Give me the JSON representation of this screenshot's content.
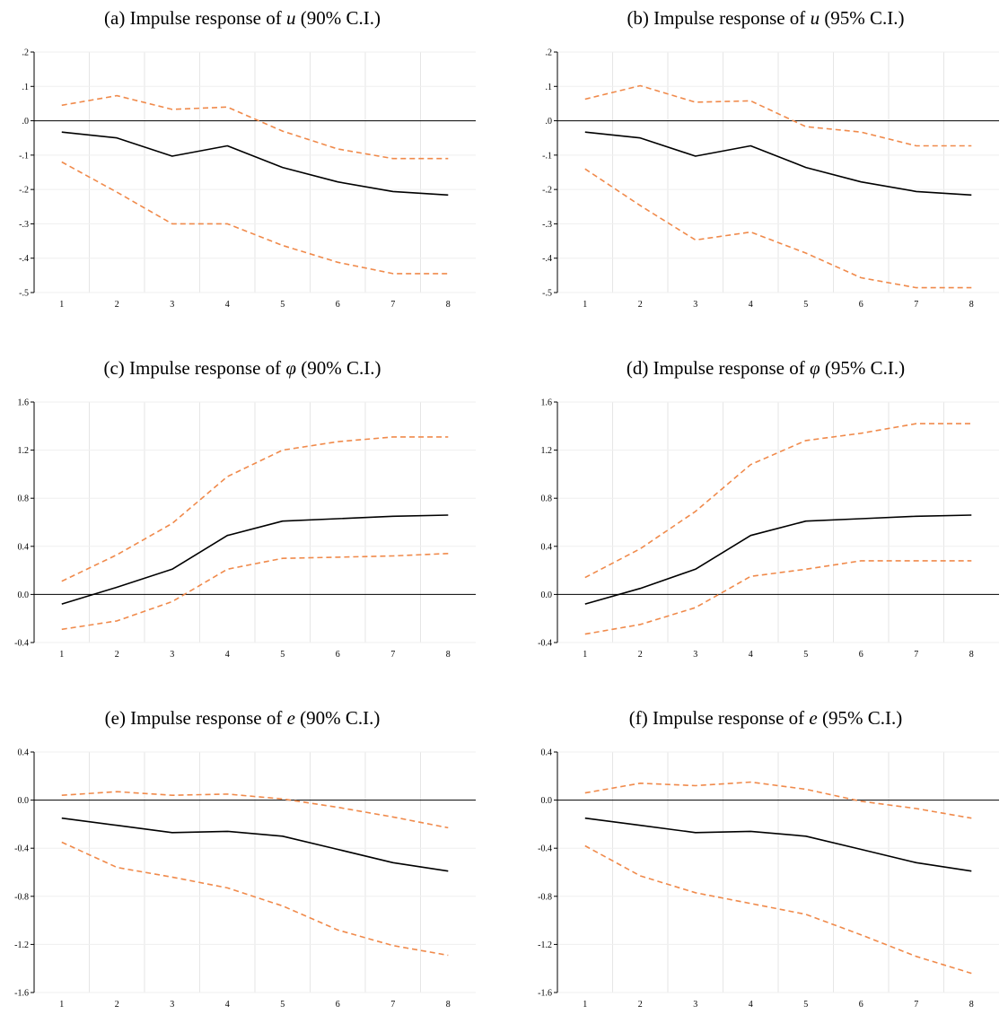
{
  "chart_data": [
    {
      "type": "line",
      "title": {
        "prefix": "(a) Impulse response of ",
        "variable": "u",
        "suffix": " (90% C.I.)"
      },
      "x": [
        1,
        2,
        3,
        4,
        5,
        6,
        7,
        8
      ],
      "xlim": [
        0.5,
        8.5
      ],
      "ylim": [
        -0.5,
        0.2
      ],
      "yticks": [
        -0.5,
        -0.4,
        -0.3,
        -0.2,
        -0.1,
        0.0,
        0.1,
        0.2
      ],
      "ytick_labels": [
        "-.5",
        "-.4",
        "-.3",
        "-.2",
        "-.1",
        ".0",
        ".1",
        ".2"
      ],
      "zero_line": 0,
      "grid": true,
      "series": [
        {
          "role": "estimate",
          "style": "solid",
          "color": "#000000",
          "values": [
            -0.033,
            -0.05,
            -0.103,
            -0.073,
            -0.136,
            -0.178,
            -0.206,
            -0.216
          ]
        },
        {
          "role": "upper",
          "style": "dashed",
          "color": "#f08a4b",
          "values": [
            0.045,
            0.073,
            0.033,
            0.04,
            -0.03,
            -0.082,
            -0.11,
            -0.11
          ]
        },
        {
          "role": "lower",
          "style": "dashed",
          "color": "#f08a4b",
          "values": [
            -0.12,
            -0.208,
            -0.3,
            -0.3,
            -0.363,
            -0.412,
            -0.445,
            -0.445
          ]
        }
      ]
    },
    {
      "type": "line",
      "title": {
        "prefix": "(b) Impulse response of ",
        "variable": "u",
        "suffix": " (95% C.I.)"
      },
      "x": [
        1,
        2,
        3,
        4,
        5,
        6,
        7,
        8
      ],
      "xlim": [
        0.5,
        8.5
      ],
      "ylim": [
        -0.5,
        0.2
      ],
      "yticks": [
        -0.5,
        -0.4,
        -0.3,
        -0.2,
        -0.1,
        0.0,
        0.1,
        0.2
      ],
      "ytick_labels": [
        "-.5",
        "-.4",
        "-.3",
        "-.2",
        "-.1",
        ".0",
        ".1",
        ".2"
      ],
      "zero_line": 0,
      "grid": true,
      "series": [
        {
          "role": "estimate",
          "style": "solid",
          "color": "#000000",
          "values": [
            -0.033,
            -0.05,
            -0.103,
            -0.073,
            -0.136,
            -0.178,
            -0.206,
            -0.216
          ]
        },
        {
          "role": "upper",
          "style": "dashed",
          "color": "#f08a4b",
          "values": [
            0.063,
            0.102,
            0.054,
            0.058,
            -0.017,
            -0.033,
            -0.073,
            -0.073
          ]
        },
        {
          "role": "lower",
          "style": "dashed",
          "color": "#f08a4b",
          "values": [
            -0.14,
            -0.247,
            -0.347,
            -0.324,
            -0.385,
            -0.457,
            -0.486,
            -0.486
          ]
        }
      ]
    },
    {
      "type": "line",
      "title": {
        "prefix": "(c) Impulse response of ",
        "variable": "φ",
        "suffix": " (90% C.I.)"
      },
      "x": [
        1,
        2,
        3,
        4,
        5,
        6,
        7,
        8
      ],
      "xlim": [
        0.5,
        8.5
      ],
      "ylim": [
        -0.4,
        1.6
      ],
      "yticks": [
        -0.4,
        0.0,
        0.4,
        0.8,
        1.2,
        1.6
      ],
      "ytick_labels": [
        "-0.4",
        "0.0",
        "0.4",
        "0.8",
        "1.2",
        "1.6"
      ],
      "zero_line": 0,
      "grid": true,
      "series": [
        {
          "role": "estimate",
          "style": "solid",
          "color": "#000000",
          "values": [
            -0.08,
            0.06,
            0.21,
            0.49,
            0.61,
            0.63,
            0.65,
            0.66
          ]
        },
        {
          "role": "upper",
          "style": "dashed",
          "color": "#f08a4b",
          "values": [
            0.11,
            0.33,
            0.59,
            0.98,
            1.2,
            1.27,
            1.31,
            1.31
          ]
        },
        {
          "role": "lower",
          "style": "dashed",
          "color": "#f08a4b",
          "values": [
            -0.29,
            -0.22,
            -0.06,
            0.21,
            0.3,
            0.31,
            0.32,
            0.34
          ]
        }
      ]
    },
    {
      "type": "line",
      "title": {
        "prefix": "(d) Impulse response of ",
        "variable": "φ",
        "suffix": " (95% C.I.)"
      },
      "x": [
        1,
        2,
        3,
        4,
        5,
        6,
        7,
        8
      ],
      "xlim": [
        0.5,
        8.5
      ],
      "ylim": [
        -0.4,
        1.6
      ],
      "yticks": [
        -0.4,
        0.0,
        0.4,
        0.8,
        1.2,
        1.6
      ],
      "ytick_labels": [
        "-0.4",
        "0.0",
        "0.4",
        "0.8",
        "1.2",
        "1.6"
      ],
      "zero_line": 0,
      "grid": true,
      "series": [
        {
          "role": "estimate",
          "style": "solid",
          "color": "#000000",
          "values": [
            -0.08,
            0.05,
            0.21,
            0.49,
            0.61,
            0.63,
            0.65,
            0.66
          ]
        },
        {
          "role": "upper",
          "style": "dashed",
          "color": "#f08a4b",
          "values": [
            0.14,
            0.38,
            0.69,
            1.08,
            1.28,
            1.34,
            1.42,
            1.42
          ]
        },
        {
          "role": "lower",
          "style": "dashed",
          "color": "#f08a4b",
          "values": [
            -0.33,
            -0.25,
            -0.11,
            0.15,
            0.21,
            0.28,
            0.28,
            0.28
          ]
        }
      ]
    },
    {
      "type": "line",
      "title": {
        "prefix": "(e) Impulse response of ",
        "variable": "e",
        "suffix": " (90% C.I.)"
      },
      "x": [
        1,
        2,
        3,
        4,
        5,
        6,
        7,
        8
      ],
      "xlim": [
        0.5,
        8.5
      ],
      "ylim": [
        -1.6,
        0.4
      ],
      "yticks": [
        -1.6,
        -1.2,
        -0.8,
        -0.4,
        0.0,
        0.4
      ],
      "ytick_labels": [
        "-1.6",
        "-1.2",
        "-0.8",
        "-0.4",
        "0.0",
        "0.4"
      ],
      "zero_line": 0,
      "grid": true,
      "series": [
        {
          "role": "estimate",
          "style": "solid",
          "color": "#000000",
          "values": [
            -0.15,
            -0.21,
            -0.27,
            -0.26,
            -0.3,
            -0.41,
            -0.52,
            -0.59
          ]
        },
        {
          "role": "upper",
          "style": "dashed",
          "color": "#f08a4b",
          "values": [
            0.04,
            0.07,
            0.04,
            0.05,
            0.01,
            -0.06,
            -0.14,
            -0.23
          ]
        },
        {
          "role": "lower",
          "style": "dashed",
          "color": "#f08a4b",
          "values": [
            -0.35,
            -0.56,
            -0.64,
            -0.73,
            -0.88,
            -1.08,
            -1.21,
            -1.29
          ]
        }
      ]
    },
    {
      "type": "line",
      "title": {
        "prefix": "(f) Impulse response of ",
        "variable": "e",
        "suffix": " (95% C.I.)"
      },
      "x": [
        1,
        2,
        3,
        4,
        5,
        6,
        7,
        8
      ],
      "xlim": [
        0.5,
        8.5
      ],
      "ylim": [
        -1.6,
        0.4
      ],
      "yticks": [
        -1.6,
        -1.2,
        -0.8,
        -0.4,
        0.0,
        0.4
      ],
      "ytick_labels": [
        "-1.6",
        "-1.2",
        "-0.8",
        "-0.4",
        "0.0",
        "0.4"
      ],
      "zero_line": 0,
      "grid": true,
      "series": [
        {
          "role": "estimate",
          "style": "solid",
          "color": "#000000",
          "values": [
            -0.15,
            -0.21,
            -0.27,
            -0.26,
            -0.3,
            -0.41,
            -0.52,
            -0.59
          ]
        },
        {
          "role": "upper",
          "style": "dashed",
          "color": "#f08a4b",
          "values": [
            0.06,
            0.14,
            0.12,
            0.15,
            0.09,
            -0.01,
            -0.07,
            -0.15
          ]
        },
        {
          "role": "lower",
          "style": "dashed",
          "color": "#f08a4b",
          "values": [
            -0.38,
            -0.63,
            -0.77,
            -0.86,
            -0.95,
            -1.12,
            -1.3,
            -1.44
          ]
        }
      ]
    }
  ]
}
